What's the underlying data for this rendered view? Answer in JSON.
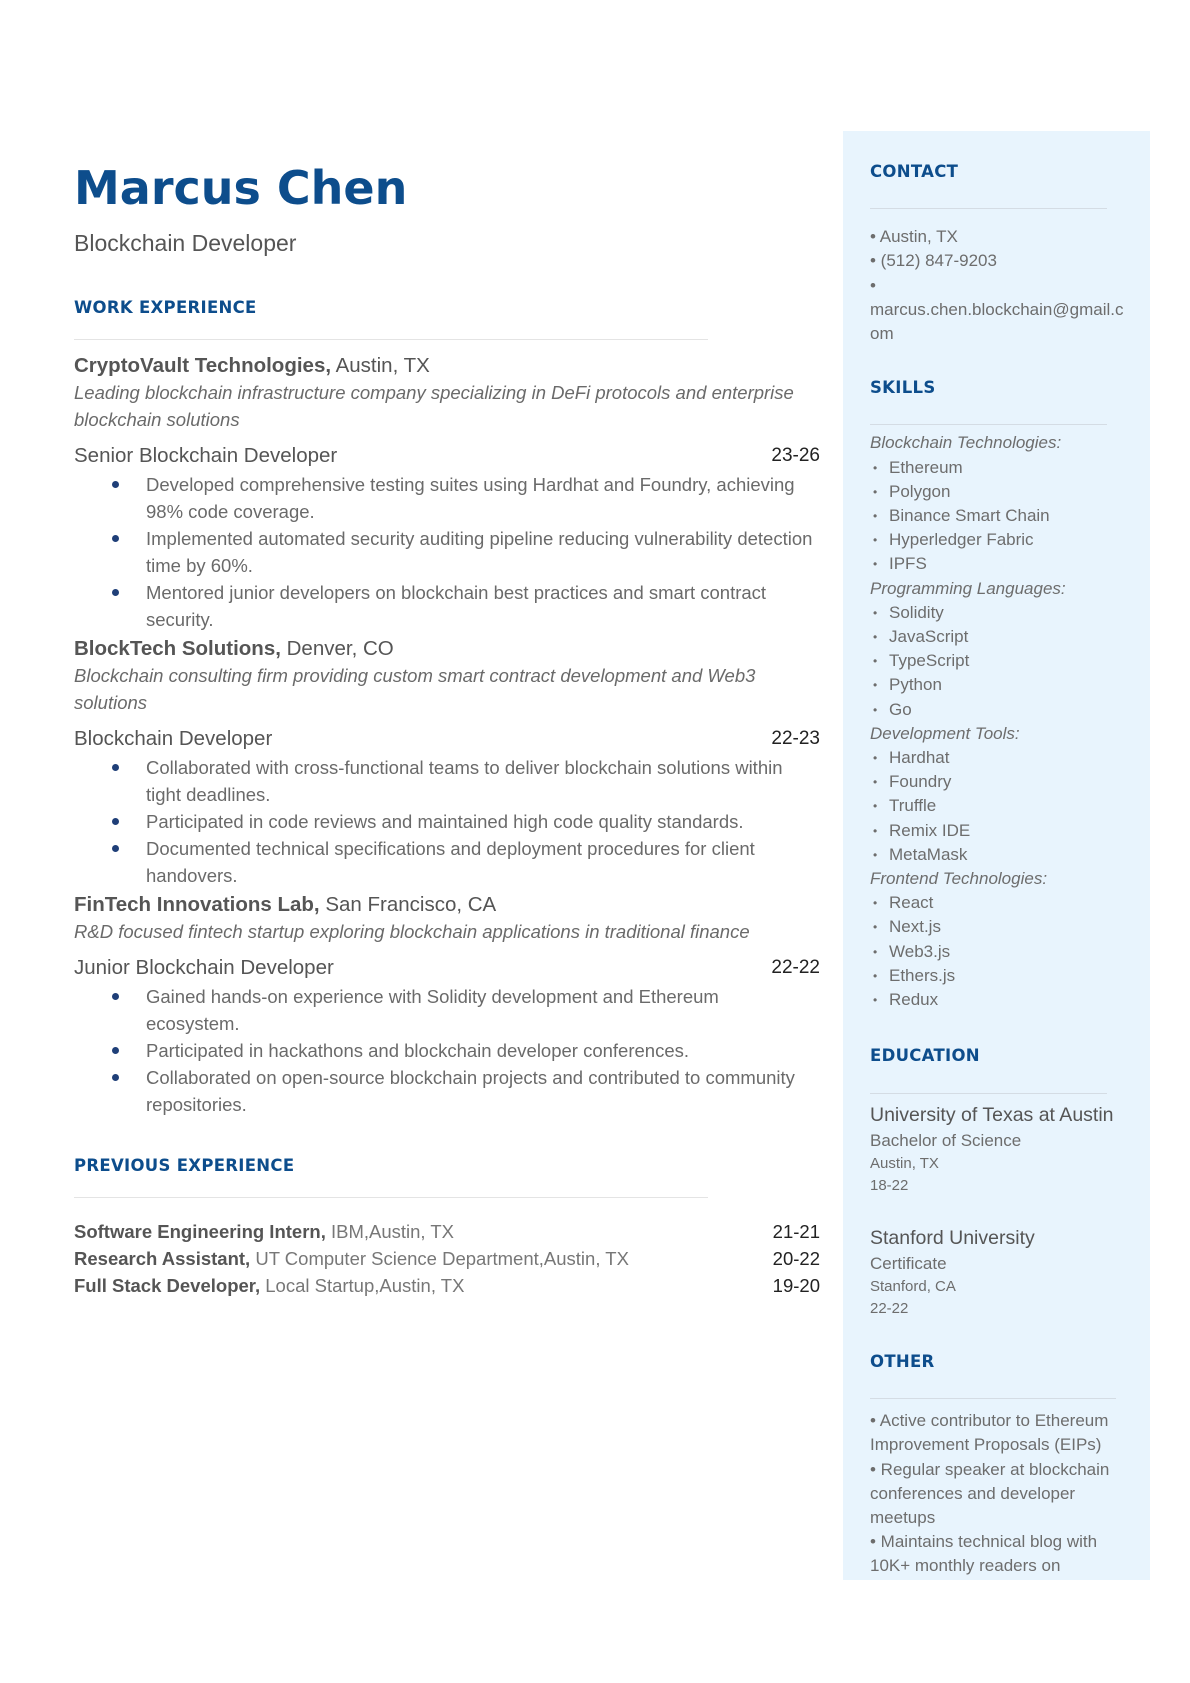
{
  "header": {
    "name": "Marcus Chen",
    "title": "Blockchain Developer"
  },
  "work": {
    "heading": "WORK EXPERIENCE",
    "jobs": [
      {
        "company": "CryptoVault Technologies,",
        "location": " Austin, TX",
        "description": "Leading blockchain infrastructure company specializing in DeFi protocols and enterprise blockchain solutions",
        "role": "Senior Blockchain Developer",
        "dates": "23-26",
        "bullets": [
          "Developed comprehensive testing suites using Hardhat and Foundry, achieving 98% code coverage.",
          "Implemented automated security auditing pipeline reducing vulnerability detection time by 60%.",
          "Mentored junior developers on blockchain best practices and smart contract security."
        ]
      },
      {
        "company": "BlockTech Solutions,",
        "location": " Denver, CO",
        "description": "Blockchain consulting firm providing custom smart contract development and Web3 solutions",
        "role": "Blockchain Developer",
        "dates": "22-23",
        "bullets": [
          "Collaborated with cross-functional teams to deliver blockchain solutions within tight deadlines.",
          "Participated in code reviews and maintained high code quality standards.",
          "Documented technical specifications and deployment procedures for client handovers."
        ]
      },
      {
        "company": "FinTech Innovations Lab,",
        "location": " San Francisco, CA",
        "description": "R&D focused fintech startup exploring blockchain applications in traditional finance",
        "role": "Junior Blockchain Developer",
        "dates": "22-22",
        "bullets": [
          "Gained hands-on experience with Solidity development and Ethereum ecosystem.",
          "Participated in hackathons and blockchain developer conferences.",
          "Collaborated on open-source blockchain projects and contributed to community repositories."
        ]
      }
    ]
  },
  "previous": {
    "heading": "PREVIOUS EXPERIENCE",
    "items": [
      {
        "role": "Software Engineering Intern,",
        "org": " IBM,Austin, TX",
        "dates": "21-21"
      },
      {
        "role": "Research Assistant,",
        "org": " UT Computer Science Department,Austin, TX",
        "dates": "20-22"
      },
      {
        "role": "Full Stack Developer,",
        "org": " Local Startup,Austin, TX",
        "dates": "19-20"
      }
    ]
  },
  "sidebar": {
    "contact": {
      "heading": "CONTACT",
      "items": [
        "• Austin, TX",
        "• (512) 847-9203",
        "•",
        "marcus.chen.blockchain@gmail.com"
      ]
    },
    "skills": {
      "heading": "SKILLS",
      "groups": [
        {
          "category": "Blockchain Technologies:",
          "items": [
            "Ethereum",
            "Polygon",
            "Binance Smart Chain",
            "Hyperledger Fabric",
            "IPFS"
          ]
        },
        {
          "category": "Programming Languages:",
          "items": [
            "Solidity",
            "JavaScript",
            "TypeScript",
            "Python",
            "Go"
          ]
        },
        {
          "category": "Development Tools:",
          "items": [
            "Hardhat",
            "Foundry",
            "Truffle",
            "Remix IDE",
            "MetaMask"
          ]
        },
        {
          "category": "Frontend Technologies:",
          "items": [
            "React",
            "Next.js",
            "Web3.js",
            "Ethers.js",
            "Redux"
          ]
        }
      ]
    },
    "education": {
      "heading": "EDUCATION",
      "items": [
        {
          "school": "University of Texas at Austin",
          "degree": "Bachelor of Science",
          "location": "Austin, TX",
          "dates": "18-22"
        },
        {
          "school": "Stanford University",
          "degree": "Certificate",
          "location": "Stanford, CA",
          "dates": "22-22"
        }
      ]
    },
    "other": {
      "heading": "OTHER",
      "items": [
        "• Active contributor to Ethereum Improvement Proposals (EIPs)",
        "• Regular speaker at blockchain conferences and developer meetups",
        "• Maintains technical blog with 10K+ monthly readers on"
      ]
    }
  },
  "colors": {
    "accent": "#0d4d8c",
    "sidebar_bg": "#e8f4fd"
  }
}
